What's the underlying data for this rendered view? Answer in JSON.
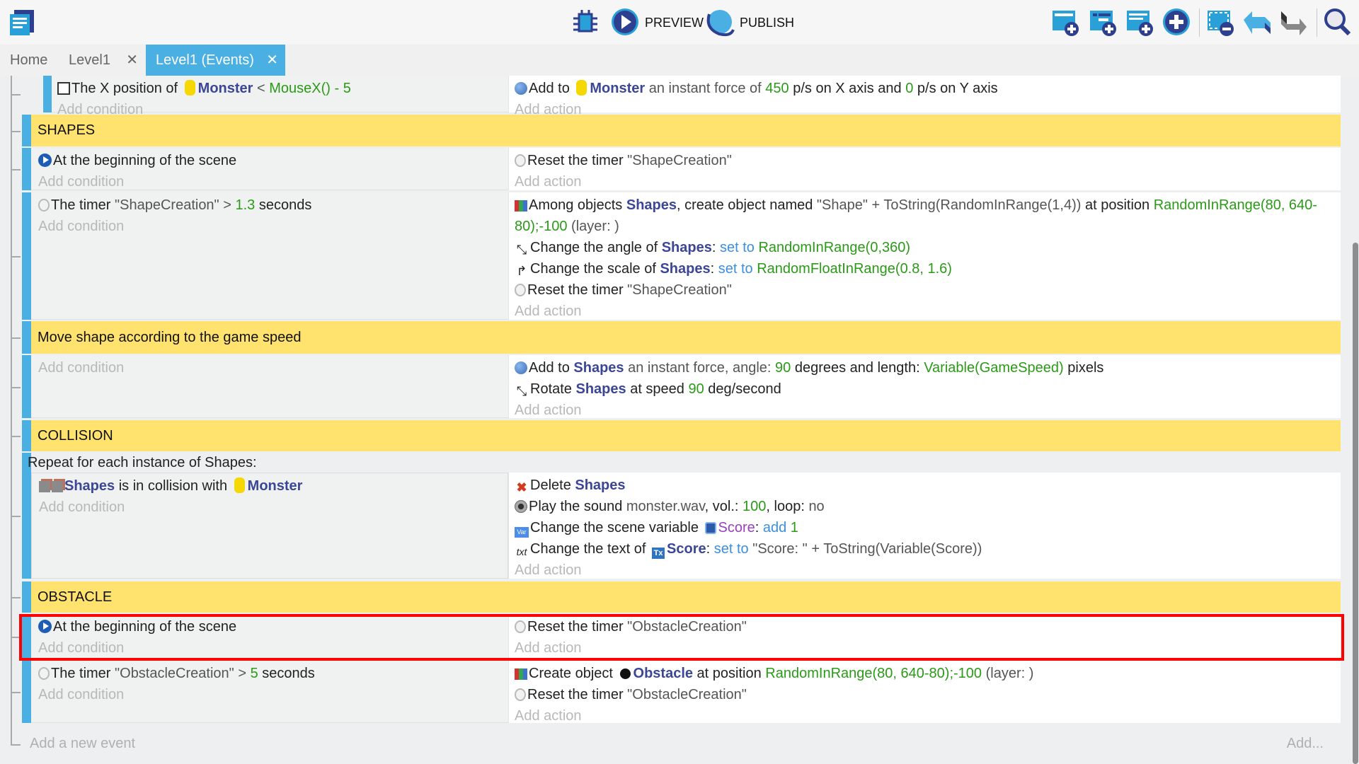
{
  "toolbar": {
    "preview_label": "PREVIEW",
    "publish_label": "PUBLISH",
    "icons": [
      "events-list-icon",
      "debugger-icon",
      "preview-play-icon",
      "publish-globe-icon",
      "add-event-icon",
      "add-subevent-icon",
      "add-comment-icon",
      "add-other-icon",
      "delete-selected-icon",
      "undo-icon",
      "redo-icon",
      "search-icon"
    ]
  },
  "tabs": [
    {
      "label": "Home",
      "closable": false,
      "active": false
    },
    {
      "label": "Level1",
      "closable": true,
      "active": false
    },
    {
      "label": "Level1 (Events)",
      "closable": true,
      "active": true
    }
  ],
  "tab_close_glyph": "✕",
  "placeholders": {
    "add_condition": "Add condition",
    "add_action": "Add action",
    "add_event": "Add a new event",
    "add_more": "Add..."
  },
  "colors": {
    "accent": "#4aafe2",
    "group": "#ffe36e",
    "object": "#3b4796",
    "value": "#2a9a17",
    "keyword": "#3c8fe0",
    "variable": "#9b3fbf",
    "selection": "#ff0000"
  },
  "blocks": [
    {
      "type": "event",
      "sub": true,
      "conditions": [
        {
          "icon": "position-icon",
          "segs": [
            [
              "The X position of ",
              "n"
            ],
            [
              "Monster",
              "o",
              "monster-icon"
            ],
            [
              " < ",
              "m"
            ],
            [
              "MouseX() - 5",
              "g"
            ]
          ]
        }
      ],
      "actions": [
        {
          "icon": "force-icon",
          "segs": [
            [
              "Add to ",
              "n"
            ],
            [
              "Monster",
              "o",
              "monster-icon"
            ],
            [
              " an instant force of ",
              "m"
            ],
            [
              "450",
              "g"
            ],
            [
              " p/s on X axis and ",
              "n"
            ],
            [
              "0",
              "g"
            ],
            [
              " p/s on Y axis",
              "n"
            ]
          ]
        }
      ]
    },
    {
      "type": "group",
      "title": "SHAPES"
    },
    {
      "type": "event",
      "conditions": [
        {
          "icon": "begin-scene-icon",
          "segs": [
            [
              "At the beginning of the scene",
              "n"
            ]
          ]
        }
      ],
      "actions": [
        {
          "icon": "timer-icon",
          "segs": [
            [
              "Reset the timer ",
              "n"
            ],
            [
              "\"ShapeCreation\"",
              "m"
            ]
          ]
        }
      ]
    },
    {
      "type": "event",
      "conditions": [
        {
          "icon": "timer-icon",
          "segs": [
            [
              "The timer ",
              "n"
            ],
            [
              "\"ShapeCreation\"",
              "m"
            ],
            [
              " > ",
              "m"
            ],
            [
              "1.3",
              "g"
            ],
            [
              " seconds",
              "n"
            ]
          ]
        }
      ],
      "actions": [
        {
          "icon": "create-object-icon",
          "segs": [
            [
              "Among objects ",
              "n"
            ],
            [
              "Shapes",
              "o"
            ],
            [
              ", create object named ",
              "n"
            ],
            [
              "\"Shape\" + ToString(RandomInRange(1,4))",
              "m"
            ],
            [
              " at position ",
              "n"
            ],
            [
              "RandomInRange(80, 640-80);-100",
              "g"
            ],
            [
              " (layer: )",
              "m"
            ]
          ]
        },
        {
          "icon": "angle-icon",
          "segs": [
            [
              "Change the angle of ",
              "n"
            ],
            [
              "Shapes",
              "o"
            ],
            [
              ": ",
              "n"
            ],
            [
              "set to",
              "b"
            ],
            [
              " RandomInRange(0,360)",
              "g"
            ]
          ]
        },
        {
          "icon": "scale-icon",
          "segs": [
            [
              "Change the scale of ",
              "n"
            ],
            [
              "Shapes",
              "o"
            ],
            [
              ": ",
              "n"
            ],
            [
              "set to",
              "b"
            ],
            [
              " RandomFloatInRange(0.8, 1.6)",
              "g"
            ]
          ]
        },
        {
          "icon": "timer-icon",
          "segs": [
            [
              "Reset the timer ",
              "n"
            ],
            [
              "\"ShapeCreation\"",
              "m"
            ]
          ]
        }
      ]
    },
    {
      "type": "group",
      "title": "Move shape according to the game speed"
    },
    {
      "type": "event",
      "conditions": [],
      "actions": [
        {
          "icon": "force-icon",
          "segs": [
            [
              "Add to ",
              "n"
            ],
            [
              "Shapes",
              "o"
            ],
            [
              " an instant force, angle: ",
              "m"
            ],
            [
              "90",
              "g"
            ],
            [
              " degrees and length: ",
              "n"
            ],
            [
              "Variable(GameSpeed)",
              "g"
            ],
            [
              " pixels",
              "n"
            ]
          ]
        },
        {
          "icon": "rotate-icon",
          "segs": [
            [
              "Rotate ",
              "n"
            ],
            [
              "Shapes",
              "o"
            ],
            [
              " at speed ",
              "n"
            ],
            [
              "90",
              "g"
            ],
            [
              " deg/second",
              "n"
            ]
          ]
        }
      ]
    },
    {
      "type": "group",
      "title": "COLLISION"
    },
    {
      "type": "foreach",
      "header": "Repeat for each instance of Shapes:",
      "conditions": [
        {
          "icon": "collision-icon",
          "segs": [
            [
              "Shapes",
              "o",
              "shapes-object-icon"
            ],
            [
              " is in collision with ",
              "n"
            ],
            [
              "Monster",
              "o",
              "monster-icon"
            ]
          ]
        }
      ],
      "actions": [
        {
          "icon": "delete-icon",
          "segs": [
            [
              "Delete ",
              "n"
            ],
            [
              "Shapes",
              "o"
            ]
          ]
        },
        {
          "icon": "sound-icon",
          "segs": [
            [
              "Play the sound ",
              "n"
            ],
            [
              "monster.wav",
              "m"
            ],
            [
              ", vol.: ",
              "n"
            ],
            [
              "100",
              "g"
            ],
            [
              ", loop: ",
              "n"
            ],
            [
              "no",
              "m"
            ]
          ]
        },
        {
          "icon": "variable-icon",
          "segs": [
            [
              "Change the scene variable ",
              "n"
            ],
            [
              "Score",
              "v",
              "scene-variable-icon"
            ],
            [
              ": ",
              "n"
            ],
            [
              "add",
              "b"
            ],
            [
              " 1",
              "g"
            ]
          ]
        },
        {
          "icon": "text-icon",
          "segs": [
            [
              "Change the text of ",
              "n"
            ],
            [
              "Score",
              "o",
              "text-object-icon"
            ],
            [
              ": ",
              "n"
            ],
            [
              "set to",
              "b"
            ],
            [
              " \"Score: \" + ToString(Variable(Score))",
              "m"
            ]
          ]
        }
      ]
    },
    {
      "type": "group",
      "title": "OBSTACLE"
    },
    {
      "type": "event",
      "selected": true,
      "conditions": [
        {
          "icon": "begin-scene-icon",
          "segs": [
            [
              "At the beginning of the scene",
              "n"
            ]
          ]
        }
      ],
      "actions": [
        {
          "icon": "timer-icon",
          "segs": [
            [
              "Reset the timer ",
              "n"
            ],
            [
              "\"ObstacleCreation\"",
              "m"
            ]
          ]
        }
      ]
    },
    {
      "type": "event",
      "conditions": [
        {
          "icon": "timer-icon",
          "segs": [
            [
              "The timer ",
              "n"
            ],
            [
              "\"ObstacleCreation\"",
              "m"
            ],
            [
              " > ",
              "m"
            ],
            [
              "5",
              "g"
            ],
            [
              " seconds",
              "n"
            ]
          ]
        }
      ],
      "actions": [
        {
          "icon": "create-object-icon",
          "segs": [
            [
              "Create object ",
              "n"
            ],
            [
              "Obstacle",
              "o",
              "bomb-icon"
            ],
            [
              " at position ",
              "n"
            ],
            [
              "RandomInRange(80, 640-80);-100",
              "g"
            ],
            [
              " (layer: )",
              "m"
            ]
          ]
        },
        {
          "icon": "timer-icon",
          "segs": [
            [
              "Reset the timer ",
              "n"
            ],
            [
              "\"ObstacleCreation\"",
              "m"
            ]
          ]
        }
      ]
    }
  ]
}
